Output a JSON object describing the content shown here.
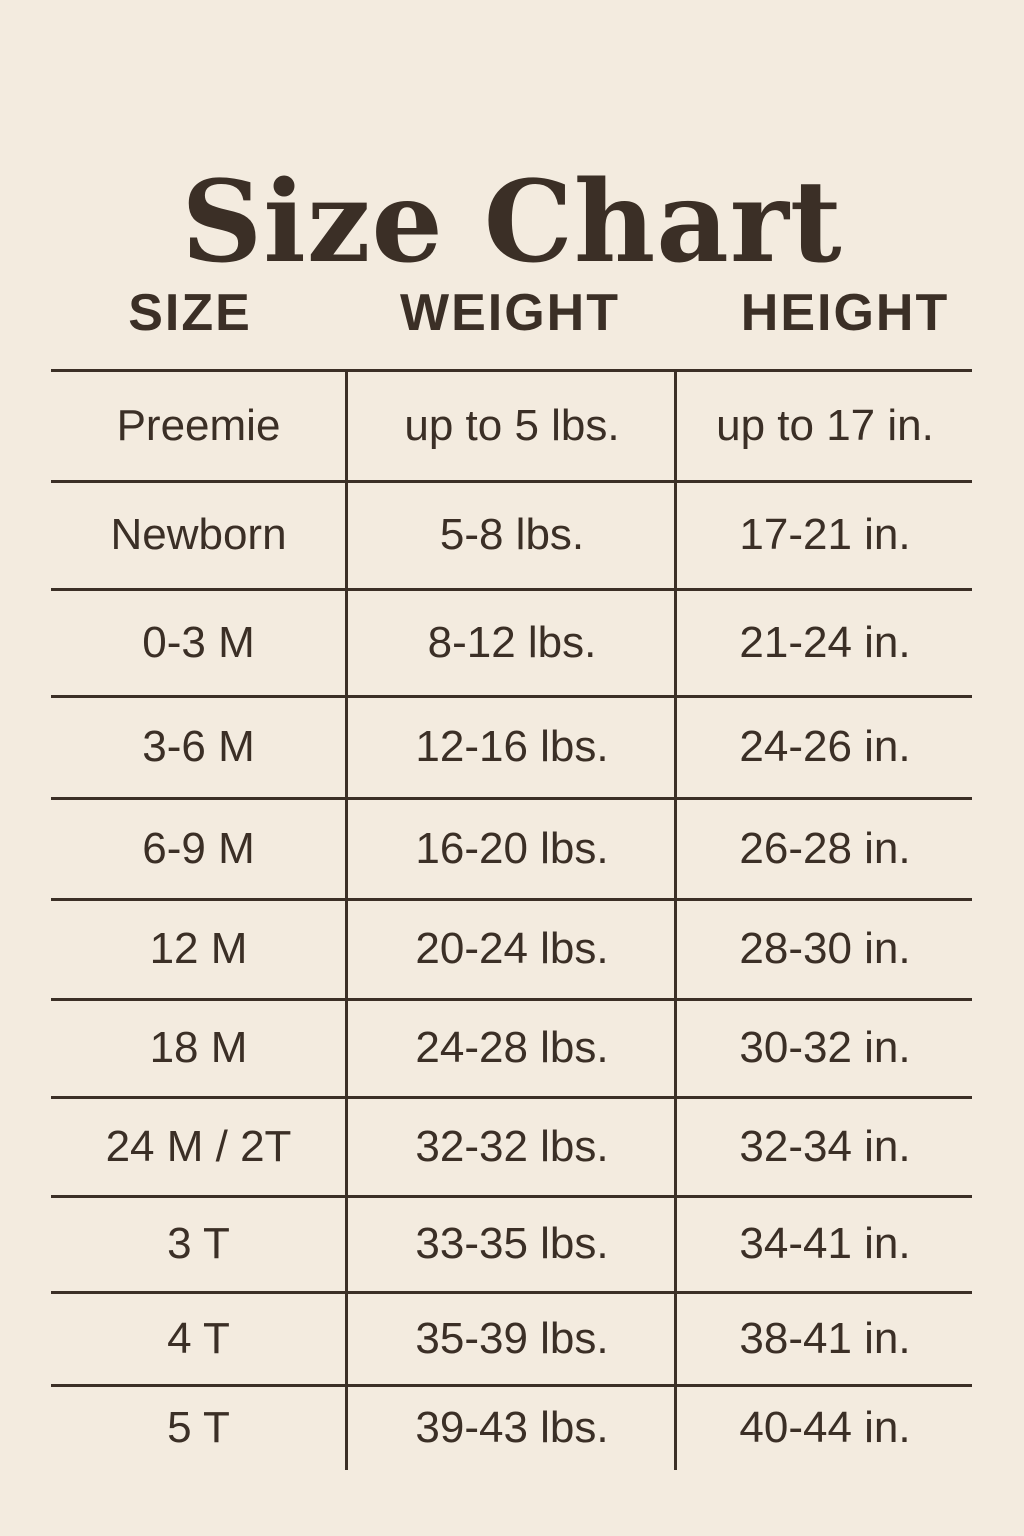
{
  "title": "Size Chart",
  "colors": {
    "background": "#f3ebdf",
    "text": "#3b2f26"
  },
  "table": {
    "headers": [
      "SIZE",
      "WEIGHT",
      "HEIGHT"
    ],
    "rows": [
      [
        "Preemie",
        "up to 5 lbs.",
        "up to 17 in."
      ],
      [
        "Newborn",
        "5-8 lbs.",
        "17-21 in."
      ],
      [
        "0-3 M",
        "8-12 lbs.",
        "21-24 in."
      ],
      [
        "3-6 M",
        "12-16 lbs.",
        "24-26 in."
      ],
      [
        "6-9 M",
        "16-20 lbs.",
        "26-28 in."
      ],
      [
        "12 M",
        "20-24 lbs.",
        "28-30 in."
      ],
      [
        "18 M",
        "24-28 lbs.",
        "30-32 in."
      ],
      [
        "24 M / 2T",
        "32-32 lbs.",
        "32-34 in."
      ],
      [
        "3 T",
        "33-35 lbs.",
        "34-41 in."
      ],
      [
        "4 T",
        "35-39 lbs.",
        "38-41 in."
      ],
      [
        "5 T",
        "39-43 lbs.",
        "40-44 in."
      ]
    ]
  }
}
